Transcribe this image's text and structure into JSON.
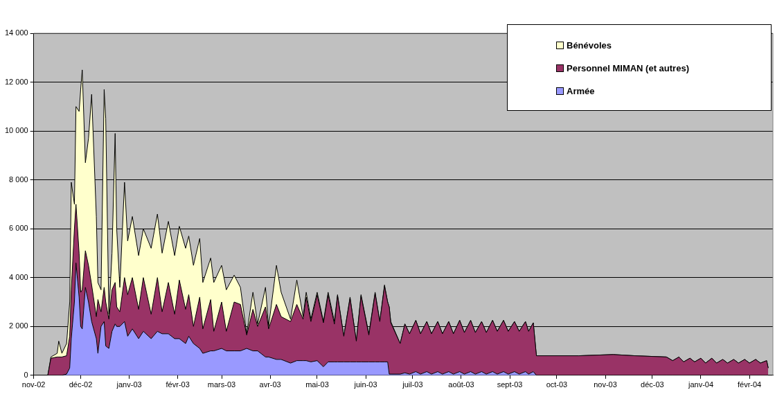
{
  "chart_data": {
    "type": "area",
    "stacked": true,
    "legend": "top right",
    "grid": "y",
    "x": [
      "2002-11-10",
      "2002-11-12",
      "2002-11-16",
      "2002-11-17",
      "2002-11-19",
      "2002-11-22",
      "2002-11-24",
      "2002-11-25",
      "2002-11-27",
      "2002-11-28",
      "2002-11-30",
      "2002-12-01",
      "2002-12-02",
      "2002-12-04",
      "2002-12-06",
      "2002-12-08",
      "2002-12-11",
      "2002-12-12",
      "2002-12-14",
      "2002-12-16",
      "2002-12-17",
      "2002-12-19",
      "2002-12-21",
      "2002-12-23",
      "2002-12-24",
      "2002-12-26",
      "2002-12-29",
      "2002-12-31",
      "2003-01-03",
      "2003-01-07",
      "2003-01-10",
      "2003-01-15",
      "2003-01-19",
      "2003-01-22",
      "2003-01-26",
      "2003-01-30",
      "2003-02-02",
      "2003-02-06",
      "2003-02-08",
      "2003-02-11",
      "2003-02-15",
      "2003-02-17",
      "2003-02-22",
      "2003-02-24",
      "2003-03-01",
      "2003-03-04",
      "2003-03-09",
      "2003-03-13",
      "2003-03-17",
      "2003-03-21",
      "2003-03-24",
      "2003-03-29",
      "2003-03-31",
      "2003-04-05",
      "2003-04-08",
      "2003-04-14",
      "2003-04-18",
      "2003-04-22",
      "2003-04-24",
      "2003-04-27",
      "2003-05-01",
      "2003-05-05",
      "2003-05-08",
      "2003-05-12",
      "2003-05-14",
      "2003-05-18",
      "2003-05-22",
      "2003-05-26",
      "2003-05-29",
      "2003-06-03",
      "2003-06-07",
      "2003-06-10",
      "2003-06-13",
      "2003-06-15",
      "2003-06-16",
      "2003-06-17",
      "2003-06-23",
      "2003-06-26",
      "2003-06-29",
      "2003-07-03",
      "2003-07-06",
      "2003-07-10",
      "2003-07-13",
      "2003-07-17",
      "2003-07-20",
      "2003-07-24",
      "2003-07-27",
      "2003-07-31",
      "2003-08-03",
      "2003-08-07",
      "2003-08-10",
      "2003-08-14",
      "2003-08-17",
      "2003-08-21",
      "2003-08-24",
      "2003-08-28",
      "2003-08-31",
      "2003-09-04",
      "2003-09-07",
      "2003-09-11",
      "2003-09-13",
      "2003-09-16",
      "2003-09-18",
      "2003-10-15",
      "2003-11-06",
      "2003-11-20",
      "2003-12-10",
      "2003-12-14",
      "2003-12-18",
      "2003-12-21",
      "2003-12-25",
      "2003-12-28",
      "2004-01-01",
      "2004-01-04",
      "2004-01-08",
      "2004-01-11",
      "2004-01-15",
      "2004-01-18",
      "2004-01-22",
      "2004-01-25",
      "2004-01-29",
      "2004-02-01",
      "2004-02-05",
      "2004-02-08",
      "2004-02-12",
      "2004-02-13"
    ],
    "series": [
      {
        "name": "Armée",
        "color": "#9999ff",
        "values": [
          0,
          0,
          0,
          0,
          0,
          50,
          300,
          1500,
          3000,
          4600,
          3200,
          2000,
          1900,
          3600,
          3000,
          2200,
          1500,
          900,
          2000,
          2200,
          1200,
          1100,
          1800,
          2100,
          2000,
          2000,
          2200,
          1600,
          1900,
          1500,
          1800,
          1500,
          1800,
          1700,
          1700,
          1500,
          1500,
          1300,
          1600,
          1300,
          1100,
          900,
          1000,
          1000,
          1100,
          1000,
          1000,
          1000,
          1100,
          1000,
          1000,
          750,
          750,
          650,
          650,
          500,
          600,
          600,
          600,
          550,
          600,
          350,
          550,
          550,
          550,
          550,
          550,
          550,
          550,
          550,
          550,
          550,
          550,
          550,
          50,
          50,
          50,
          100,
          50,
          150,
          50,
          150,
          50,
          150,
          50,
          150,
          50,
          150,
          50,
          150,
          50,
          150,
          50,
          150,
          50,
          150,
          50,
          150,
          50,
          150,
          50,
          150,
          0,
          0,
          0,
          0,
          0,
          0,
          0,
          0,
          0,
          0,
          0,
          0,
          0,
          0,
          0,
          0,
          0,
          0,
          0,
          0,
          0,
          0,
          0,
          0
        ]
      },
      {
        "name": "Personnel MIMAN (et autres)",
        "color": "#993366",
        "values": [
          0,
          700,
          750,
          750,
          750,
          750,
          1300,
          2000,
          3000,
          2400,
          1800,
          1400,
          1600,
          1500,
          1500,
          1500,
          900,
          2200,
          600,
          1400,
          1800,
          1200,
          1700,
          1700,
          800,
          600,
          1800,
          1700,
          2100,
          1200,
          2200,
          1000,
          2200,
          900,
          2100,
          1000,
          2400,
          1400,
          1700,
          700,
          2100,
          1000,
          2100,
          800,
          1900,
          800,
          2000,
          1900,
          550,
          1700,
          1000,
          2050,
          1150,
          2250,
          1750,
          1700,
          2300,
          1700,
          2600,
          1650,
          2700,
          1800,
          2750,
          1550,
          2700,
          1050,
          2600,
          850,
          2700,
          1100,
          2800,
          1650,
          3100,
          2450,
          2750,
          2100,
          1250,
          2000,
          1650,
          2100,
          1650,
          2050,
          1650,
          2050,
          1650,
          2050,
          1650,
          2100,
          1700,
          2100,
          1700,
          2050,
          1700,
          2100,
          1750,
          2100,
          1750,
          2050,
          1750,
          2050,
          1750,
          2000,
          800,
          800,
          850,
          800,
          750,
          600,
          750,
          550,
          700,
          550,
          700,
          500,
          700,
          500,
          650,
          500,
          650,
          500,
          650,
          500,
          650,
          500,
          600,
          300
        ]
      },
      {
        "name": "Bénévoles",
        "color": "#ffffcc",
        "values": [
          0,
          50,
          150,
          650,
          150,
          500,
          1400,
          4400,
          1000,
          4000,
          5800,
          8300,
          9000,
          3600,
          5200,
          7800,
          4100,
          700,
          900,
          8100,
          7500,
          200,
          1500,
          6100,
          3200,
          1000,
          3900,
          2200,
          2500,
          2200,
          2000,
          2700,
          2600,
          2400,
          2500,
          2400,
          2200,
          2500,
          2400,
          2500,
          2400,
          1900,
          1700,
          2000,
          1500,
          1700,
          1100,
          700,
          50,
          700,
          100,
          800,
          100,
          1600,
          1000,
          100,
          1000,
          100,
          200,
          100,
          100,
          50,
          100,
          100,
          50,
          0,
          50,
          0,
          50,
          50,
          50,
          0,
          50,
          0,
          0,
          50,
          0,
          0,
          0,
          0,
          0,
          0,
          0,
          0,
          0,
          0,
          0,
          0,
          0,
          0,
          0,
          0,
          0,
          0,
          0,
          0,
          0,
          0,
          0,
          0,
          0,
          0,
          0,
          0,
          0,
          0,
          0,
          0,
          0,
          0,
          0,
          0,
          0,
          0,
          0,
          0,
          0,
          0,
          0,
          0,
          0,
          0,
          0,
          0,
          0,
          0
        ]
      }
    ],
    "xlim": [
      "2002-11-01",
      "2004-02-16"
    ],
    "xticks": [
      {
        "value": "2002-11-01",
        "label": "nov-02"
      },
      {
        "value": "2002-12-01",
        "label": "déc-02"
      },
      {
        "value": "2003-01-01",
        "label": "janv-03"
      },
      {
        "value": "2003-02-01",
        "label": "févr-03"
      },
      {
        "value": "2003-03-01",
        "label": "mars-03"
      },
      {
        "value": "2003-04-01",
        "label": "avr-03"
      },
      {
        "value": "2003-05-01",
        "label": "mai-03"
      },
      {
        "value": "2003-06-01",
        "label": "juin-03"
      },
      {
        "value": "2003-07-01",
        "label": "juil-03"
      },
      {
        "value": "2003-08-01",
        "label": "août-03"
      },
      {
        "value": "2003-09-01",
        "label": "sept-03"
      },
      {
        "value": "2003-10-01",
        "label": "oct-03"
      },
      {
        "value": "2003-11-01",
        "label": "nov-03"
      },
      {
        "value": "2003-12-01",
        "label": "déc-03"
      },
      {
        "value": "2004-01-01",
        "label": "janv-04"
      },
      {
        "value": "2004-02-01",
        "label": "févr-04"
      }
    ],
    "ylim": [
      0,
      14000
    ],
    "yticks": [
      {
        "value": 0,
        "label": "0"
      },
      {
        "value": 2000,
        "label": "2 000"
      },
      {
        "value": 4000,
        "label": "4 000"
      },
      {
        "value": 6000,
        "label": "6 000"
      },
      {
        "value": 8000,
        "label": "8 000"
      },
      {
        "value": 10000,
        "label": "10 000"
      },
      {
        "value": 12000,
        "label": "12 000"
      },
      {
        "value": 14000,
        "label": "14 000"
      }
    ]
  }
}
